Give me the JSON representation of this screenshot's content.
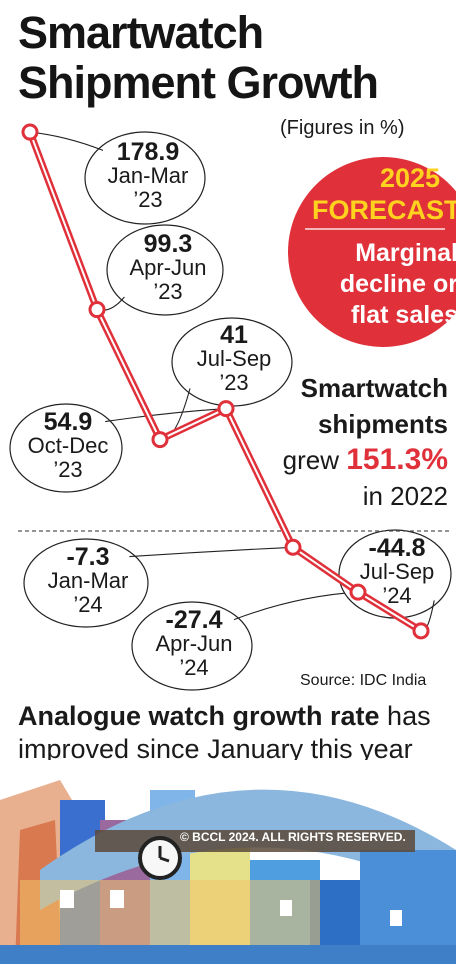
{
  "title": "Smartwatch Shipment Growth",
  "subtitle": "(Figures in %)",
  "forecast": {
    "year": "2025",
    "label": "FORECAST",
    "text": "Marginal decline or flat sales"
  },
  "annotation": {
    "line1": "Smartwatch",
    "line2": "shipments",
    "line3_prefix": "grew",
    "value": "151.3%",
    "line4": "in 2022"
  },
  "source": "Source: IDC India",
  "bottom_text_bold": "Analogue watch growth rate",
  "bottom_text_rest": " has improved since January this year",
  "copyright": "© BCCL 2024. ALL RIGHTS RESERVED.",
  "colors": {
    "line": "#e0303a",
    "accent": "#ffd21f"
  },
  "chart_data": {
    "type": "line",
    "title": "Smartwatch Shipment Growth",
    "ylabel": "",
    "points": [
      {
        "value": "178.9",
        "period": "Jan-Mar",
        "year": "’23",
        "y": 178.9
      },
      {
        "value": "99.3",
        "period": "Apr-Jun",
        "year": "’23",
        "y": 99.3
      },
      {
        "value": "41",
        "period": "Jul-Sep",
        "year": "’23",
        "y": 41
      },
      {
        "value": "54.9",
        "period": "Oct-Dec",
        "year": "’23",
        "y": 54.9
      },
      {
        "value": "-7.3",
        "period": "Jan-Mar",
        "year": "’24",
        "y": -7.3
      },
      {
        "value": "-27.4",
        "period": "Apr-Jun",
        "year": "’24",
        "y": -27.4
      },
      {
        "value": "-44.8",
        "period": "Jul-Sep",
        "year": "’24",
        "y": -44.8
      }
    ],
    "zero_line": true,
    "grid": false
  }
}
